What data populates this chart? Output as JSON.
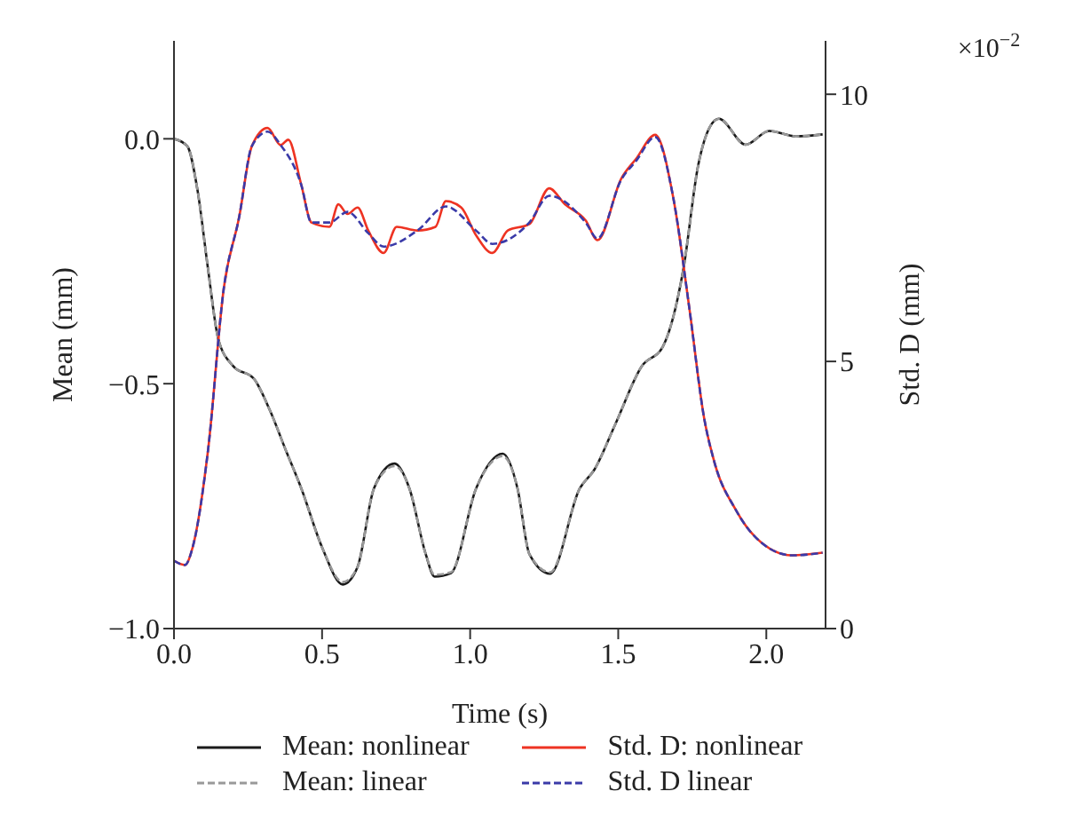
{
  "chart_data": {
    "type": "line",
    "xlabel": "Time (s)",
    "ylabel": "Mean (mm)",
    "y2label": "Std. D (mm)",
    "xlim": [
      0,
      2.2
    ],
    "xticks": [
      {
        "value": 0,
        "label": "0.0"
      },
      {
        "value": 0.5,
        "label": "0.5"
      },
      {
        "value": 1,
        "label": "1.0"
      },
      {
        "value": 1.5,
        "label": "1.5"
      },
      {
        "value": 2,
        "label": "2.0"
      }
    ],
    "ylim": [
      -1,
      0.2
    ],
    "yticks": [
      {
        "value": -1,
        "label": "−1.0"
      },
      {
        "value": -0.5,
        "label": "−0.5"
      },
      {
        "value": 0,
        "label": "0.0"
      }
    ],
    "y2lim": [
      0,
      11
    ],
    "y2ticks": [
      0,
      5,
      10
    ],
    "annotations": [
      "×10$^{−2}$"
    ],
    "legend": "bottom",
    "marker": "none",
    "series": [
      {
        "name": "Mean: nonlinear",
        "color": "#1a1a1a",
        "line_style": "solid",
        "x": [
          0,
          0.045,
          0.08,
          0.115,
          0.15,
          0.2,
          0.27,
          0.325,
          0.377,
          0.43,
          0.5,
          0.57,
          0.62,
          0.675,
          0.745,
          0.795,
          0.85,
          0.88,
          0.935,
          1.02,
          1.11,
          1.16,
          1.2,
          1.27,
          1.37,
          1.42,
          1.49,
          1.58,
          1.65,
          1.72,
          1.77,
          1.81,
          1.84,
          1.93,
          2.01,
          2.1,
          2.19
        ],
        "values": [
          0,
          -0.015,
          -0.107,
          -0.266,
          -0.41,
          -0.464,
          -0.49,
          -0.556,
          -0.635,
          -0.714,
          -0.834,
          -0.91,
          -0.874,
          -0.714,
          -0.663,
          -0.714,
          -0.848,
          -0.894,
          -0.887,
          -0.714,
          -0.643,
          -0.714,
          -0.848,
          -0.888,
          -0.714,
          -0.675,
          -0.583,
          -0.464,
          -0.425,
          -0.266,
          -0.054,
          0.025,
          0.041,
          -0.012,
          0.016,
          0.005,
          0.009
        ]
      },
      {
        "name": "Mean: linear",
        "color": "#999999",
        "line_style": "dashed",
        "x": [
          0,
          0.045,
          0.08,
          0.115,
          0.15,
          0.2,
          0.27,
          0.325,
          0.377,
          0.43,
          0.5,
          0.57,
          0.62,
          0.675,
          0.745,
          0.795,
          0.85,
          0.88,
          0.935,
          1.02,
          1.11,
          1.16,
          1.2,
          1.27,
          1.37,
          1.42,
          1.49,
          1.58,
          1.65,
          1.72,
          1.77,
          1.81,
          1.84,
          1.93,
          2.01,
          2.1,
          2.19
        ],
        "values": [
          0,
          -0.015,
          -0.107,
          -0.266,
          -0.41,
          -0.464,
          -0.49,
          -0.556,
          -0.635,
          -0.714,
          -0.834,
          -0.905,
          -0.874,
          -0.714,
          -0.668,
          -0.714,
          -0.848,
          -0.89,
          -0.885,
          -0.714,
          -0.648,
          -0.714,
          -0.848,
          -0.885,
          -0.714,
          -0.675,
          -0.583,
          -0.464,
          -0.425,
          -0.266,
          -0.054,
          0.025,
          0.041,
          -0.012,
          0.016,
          0.005,
          0.009
        ]
      },
      {
        "name": "Std. D: nonlinear",
        "color": "#ee3322",
        "line_style": "solid",
        "axis": "y2",
        "x": [
          0,
          0.037,
          0.063,
          0.115,
          0.168,
          0.22,
          0.263,
          0.316,
          0.36,
          0.386,
          0.43,
          0.464,
          0.525,
          0.555,
          0.586,
          0.62,
          0.656,
          0.708,
          0.752,
          0.822,
          0.883,
          0.918,
          0.97,
          1.02,
          1.075,
          1.127,
          1.2,
          1.267,
          1.32,
          1.39,
          1.43,
          1.51,
          1.56,
          1.625,
          1.686,
          1.74,
          1.79,
          1.826,
          1.895,
          1.965,
          2.087,
          2.19
        ],
        "values": [
          1.27,
          1.19,
          1.52,
          3.34,
          6.36,
          7.7,
          9.03,
          9.37,
          9.05,
          9.15,
          8.3,
          7.6,
          7.52,
          7.94,
          7.76,
          7.88,
          7.45,
          7.03,
          7.52,
          7.45,
          7.52,
          8,
          7.88,
          7.36,
          7.03,
          7.45,
          7.57,
          8.24,
          7.94,
          7.64,
          7.27,
          8.42,
          8.79,
          9.24,
          8.06,
          6,
          3.94,
          3.09,
          2.24,
          1.7,
          1.37,
          1.42
        ]
      },
      {
        "name": "Std. D linear",
        "color": "#3a3aa8",
        "line_style": "dashed",
        "axis": "y2",
        "x": [
          0,
          0.037,
          0.063,
          0.115,
          0.168,
          0.22,
          0.263,
          0.316,
          0.36,
          0.43,
          0.464,
          0.525,
          0.586,
          0.656,
          0.708,
          0.822,
          0.918,
          1.02,
          1.075,
          1.2,
          1.267,
          1.39,
          1.43,
          1.51,
          1.56,
          1.625,
          1.686,
          1.74,
          1.79,
          1.826,
          1.895,
          1.965,
          2.087,
          2.19
        ],
        "values": [
          1.27,
          1.19,
          1.52,
          3.34,
          6.36,
          7.7,
          9.03,
          9.3,
          9.05,
          8.3,
          7.6,
          7.6,
          7.8,
          7.4,
          7.15,
          7.45,
          7.9,
          7.45,
          7.2,
          7.6,
          8.1,
          7.6,
          7.3,
          8.4,
          8.75,
          9.2,
          8.06,
          6,
          3.94,
          3.09,
          2.24,
          1.7,
          1.37,
          1.42
        ]
      }
    ]
  }
}
